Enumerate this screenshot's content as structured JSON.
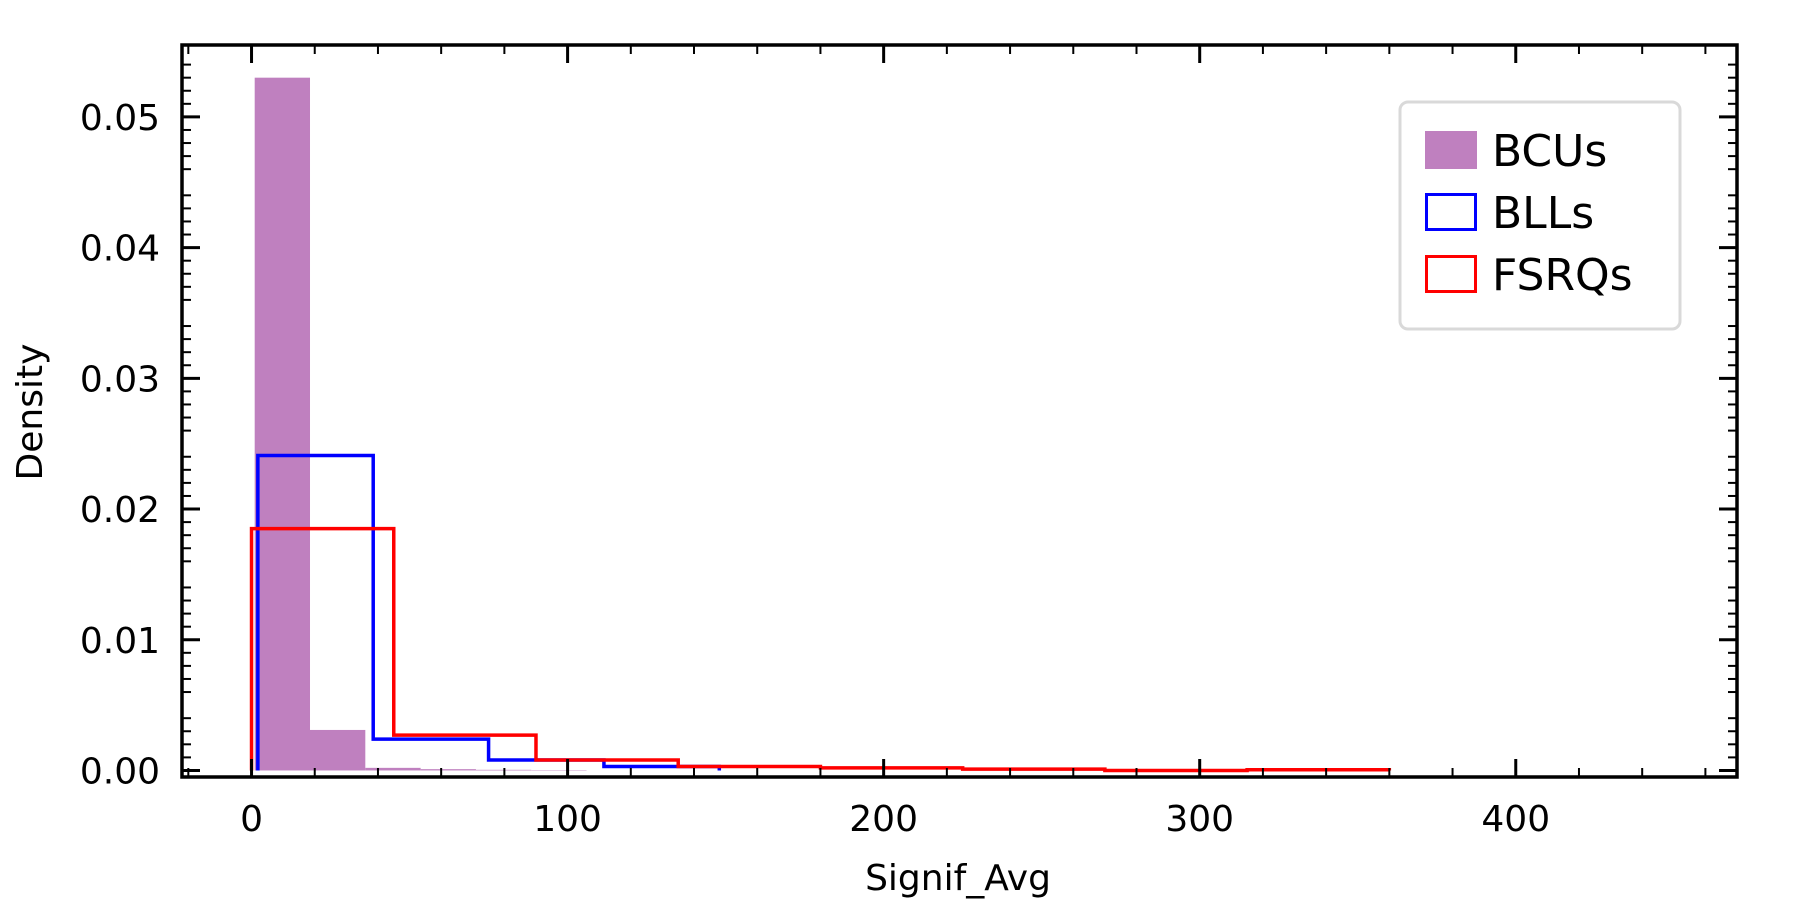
{
  "chart_data": {
    "type": "bar",
    "histogram": true,
    "xlabel": "Signif_Avg",
    "ylabel": "Density",
    "xlim": [
      -22,
      470
    ],
    "ylim": [
      -0.0005,
      0.0555
    ],
    "xticks": [
      "0",
      "100",
      "200",
      "300",
      "400"
    ],
    "xtick_values": [
      0,
      100,
      200,
      300,
      400
    ],
    "yticks": [
      "0.00",
      "0.01",
      "0.02",
      "0.03",
      "0.04",
      "0.05"
    ],
    "ytick_values": [
      0,
      0.01,
      0.02,
      0.03,
      0.04,
      0.05
    ],
    "legend_position": "top-right",
    "series": [
      {
        "name": "BCUs",
        "style": "filled",
        "color": "#bf80bf",
        "bin_edges": [
          1,
          18.5,
          36,
          53.5,
          71,
          88.5,
          106
        ],
        "values": [
          0.053,
          0.0031,
          0.0002,
          0.0001,
          5e-05,
          3e-05
        ]
      },
      {
        "name": "BLLs",
        "style": "step",
        "color": "#0000ff",
        "bin_edges": [
          2,
          38.5,
          75,
          111.5,
          148
        ],
        "values": [
          0.0241,
          0.0024,
          0.0008,
          0.0003
        ]
      },
      {
        "name": "FSRQs",
        "style": "step",
        "color": "#ff0000",
        "bin_edges": [
          0,
          45,
          90,
          135,
          180,
          225,
          270,
          315,
          360
        ],
        "values": [
          0.0185,
          0.0027,
          0.0008,
          0.0003,
          0.0002,
          0.0001,
          0.0,
          5e-05
        ]
      }
    ]
  }
}
